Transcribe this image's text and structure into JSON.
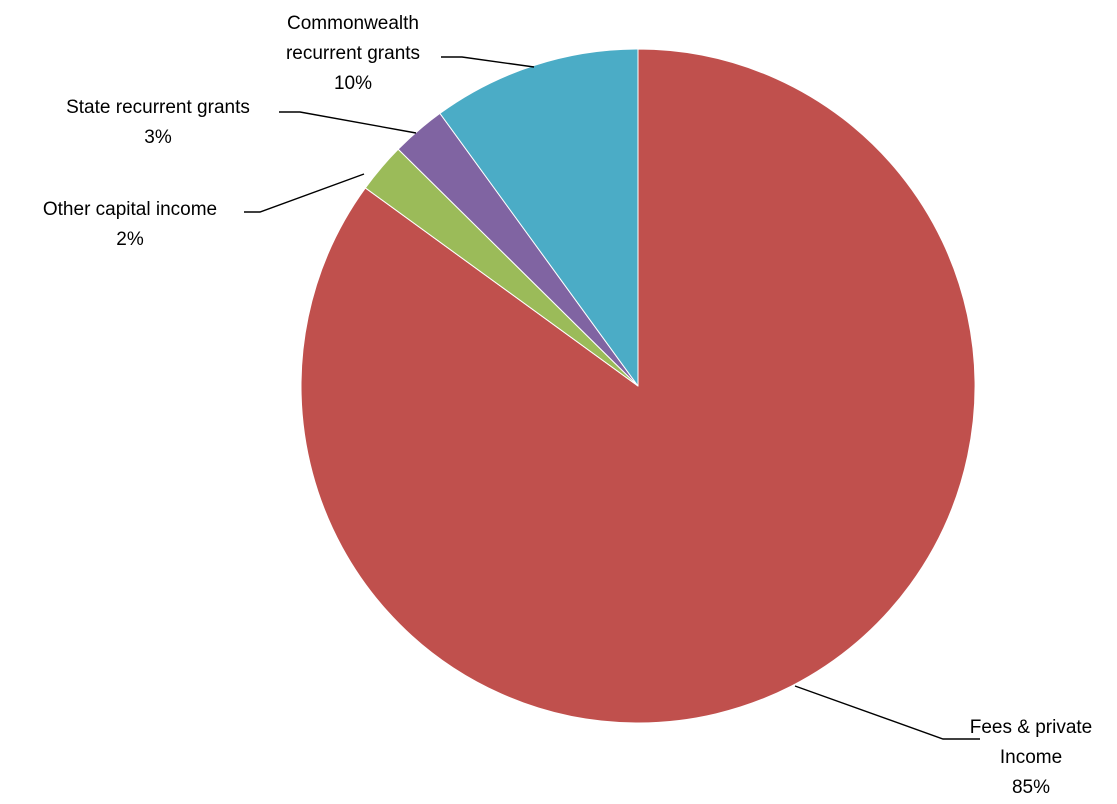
{
  "chart_data": {
    "type": "pie",
    "title": "",
    "start_angle_deg": 0,
    "direction": "clockwise",
    "slices": [
      {
        "label": [
          "Fees & private",
          "Income"
        ],
        "percent_label": "85%",
        "value": 85,
        "color": "#c0504d"
      },
      {
        "label": [
          "Other capital income"
        ],
        "percent_label": "2%",
        "value": 2.4,
        "color": "#9bbb59"
      },
      {
        "label": [
          "State recurrent grants"
        ],
        "percent_label": "3%",
        "value": 2.6,
        "color": "#8064a2"
      },
      {
        "label": [
          "Commonwealth",
          "recurrent grants"
        ],
        "percent_label": "10%",
        "value": 10,
        "color": "#4bacc6"
      }
    ],
    "legend": "none",
    "data_labels": "outside-with-leader-lines"
  }
}
